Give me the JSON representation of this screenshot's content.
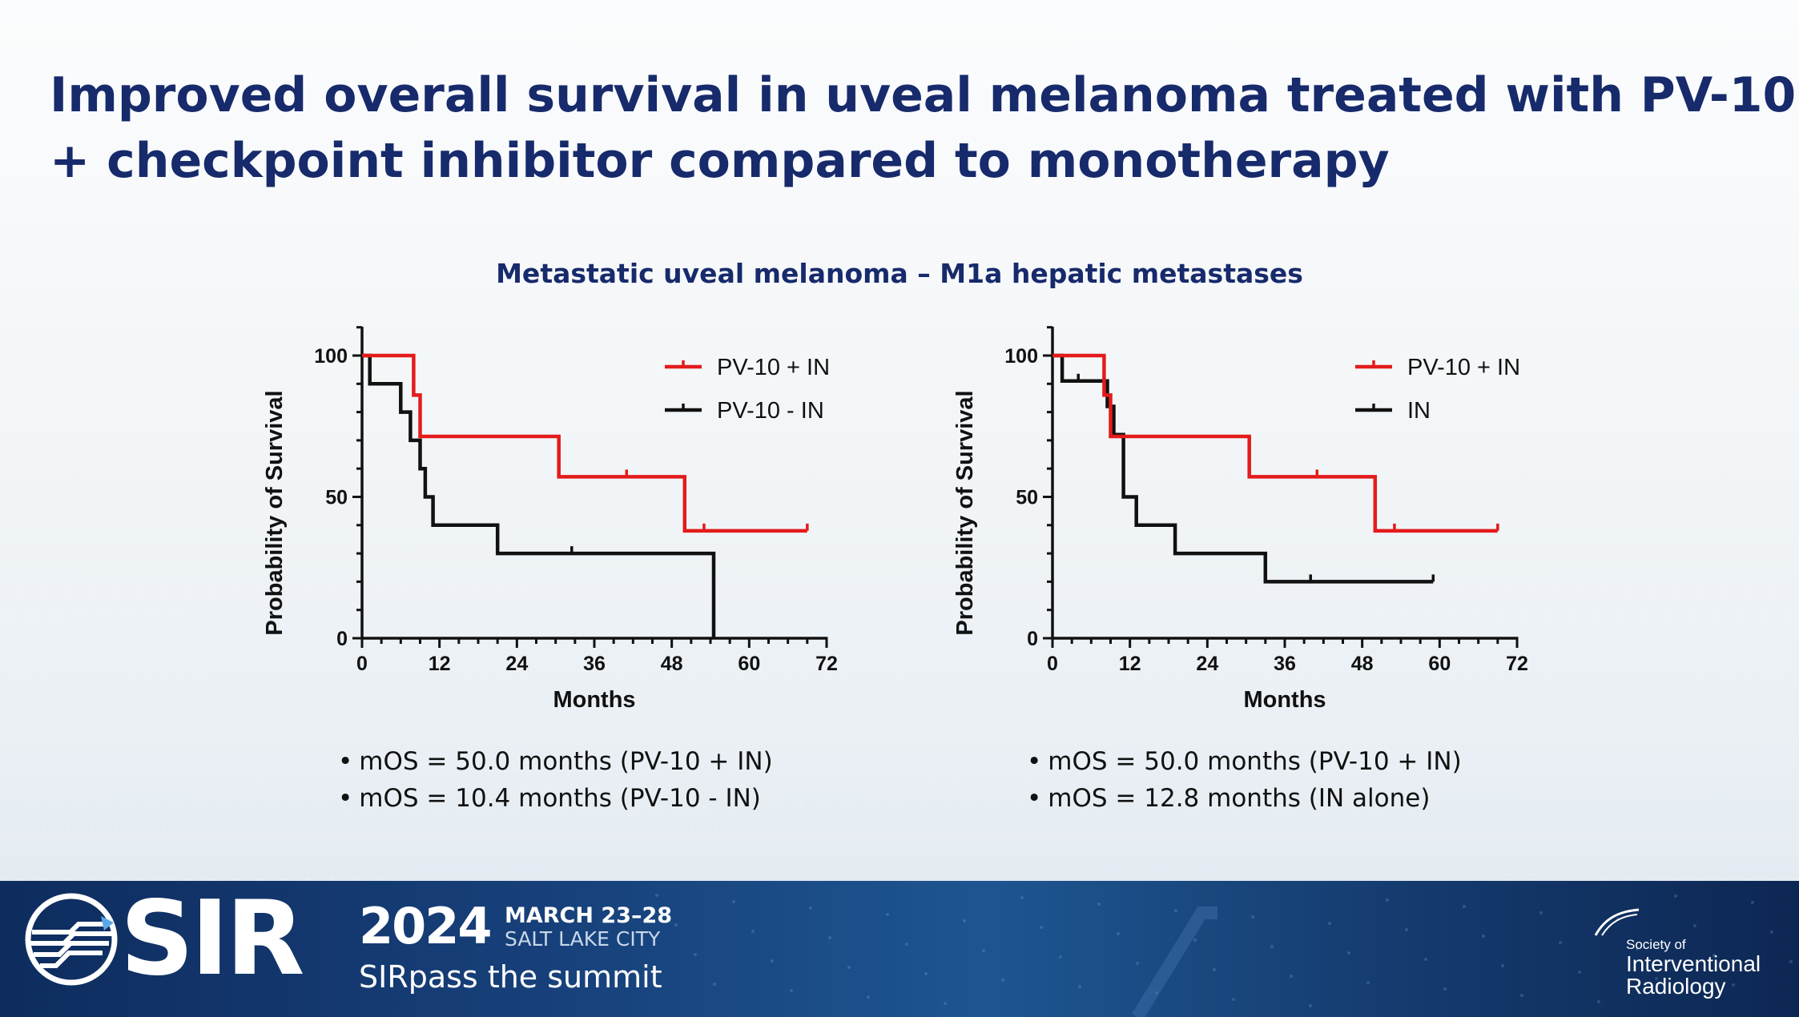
{
  "title": {
    "line1": "Improved overall survival in uveal melanoma treated with PV-10",
    "line2": "+ checkpoint inhibitor compared to monotherapy"
  },
  "subtitle": "Metastatic uveal melanoma – M1a hepatic metastases",
  "colors": {
    "title": "#172a6b",
    "red": "#e31b1b",
    "black": "#111111",
    "footer": "#17407a"
  },
  "chart_data": [
    {
      "type": "line",
      "title": "",
      "xlabel": "Months",
      "ylabel": "Probability of Survival",
      "xlim": [
        0,
        72
      ],
      "ylim": [
        0,
        100
      ],
      "xticks": [
        0,
        12,
        24,
        36,
        48,
        60,
        72
      ],
      "yticks": [
        0,
        50,
        100
      ],
      "xtick_labels": [
        "0",
        "12",
        "24",
        "36",
        "48",
        "60",
        "72"
      ],
      "ytick_labels": [
        "0",
        "50",
        "100"
      ],
      "legend_position": "top-right",
      "series": [
        {
          "name": "PV-10 + IN",
          "color": "#e31b1b",
          "points": [
            [
              0,
              100
            ],
            [
              8,
              100
            ],
            [
              8,
              86
            ],
            [
              9,
              86
            ],
            [
              9,
              71.4
            ],
            [
              30.5,
              71.4
            ],
            [
              30.5,
              57.1
            ],
            [
              50,
              57.1
            ],
            [
              50,
              38
            ],
            [
              69,
              38
            ]
          ],
          "censors": [
            [
              41,
              57.1
            ],
            [
              53,
              38
            ],
            [
              69,
              38
            ]
          ]
        },
        {
          "name": "PV-10 - IN",
          "color": "#111111",
          "points": [
            [
              0,
              100
            ],
            [
              1.2,
              100
            ],
            [
              1.2,
              90
            ],
            [
              6,
              90
            ],
            [
              6,
              80
            ],
            [
              7.5,
              80
            ],
            [
              7.5,
              70
            ],
            [
              9,
              70
            ],
            [
              9,
              60
            ],
            [
              9.8,
              60
            ],
            [
              9.8,
              50
            ],
            [
              11,
              50
            ],
            [
              11,
              40
            ],
            [
              21,
              40
            ],
            [
              21,
              30
            ],
            [
              54.5,
              30
            ],
            [
              54.5,
              0
            ]
          ],
          "censors": [
            [
              32.5,
              30
            ]
          ]
        }
      ]
    },
    {
      "type": "line",
      "title": "",
      "xlabel": "Months",
      "ylabel": "Probability of Survival",
      "xlim": [
        0,
        72
      ],
      "ylim": [
        0,
        100
      ],
      "xticks": [
        0,
        12,
        24,
        36,
        48,
        60,
        72
      ],
      "yticks": [
        0,
        50,
        100
      ],
      "xtick_labels": [
        "0",
        "12",
        "24",
        "36",
        "48",
        "60",
        "72"
      ],
      "ytick_labels": [
        "0",
        "50",
        "100"
      ],
      "legend_position": "top-right",
      "series": [
        {
          "name": "PV-10 + IN",
          "color": "#e31b1b",
          "points": [
            [
              0,
              100
            ],
            [
              8,
              100
            ],
            [
              8,
              86
            ],
            [
              9,
              86
            ],
            [
              9,
              71.4
            ],
            [
              30.5,
              71.4
            ],
            [
              30.5,
              57.1
            ],
            [
              50,
              57.1
            ],
            [
              50,
              38
            ],
            [
              69,
              38
            ]
          ],
          "censors": [
            [
              41,
              57.1
            ],
            [
              53,
              38
            ],
            [
              69,
              38
            ]
          ]
        },
        {
          "name": "IN",
          "color": "#111111",
          "points": [
            [
              0,
              100
            ],
            [
              1.5,
              100
            ],
            [
              1.5,
              91
            ],
            [
              8.5,
              91
            ],
            [
              8.5,
              82
            ],
            [
              9.5,
              82
            ],
            [
              9.5,
              72
            ],
            [
              11,
              72
            ],
            [
              11,
              50
            ],
            [
              13,
              50
            ],
            [
              13,
              40
            ],
            [
              19,
              40
            ],
            [
              19,
              30
            ],
            [
              33,
              30
            ],
            [
              33,
              20
            ],
            [
              59,
              20
            ]
          ],
          "censors": [
            [
              4,
              91
            ],
            [
              40,
              20
            ],
            [
              59,
              20
            ]
          ]
        }
      ]
    }
  ],
  "bullets_left": [
    "mOS = 50.0 months (PV-10 + IN)",
    "mOS = 10.4 months (PV-10 - IN)"
  ],
  "bullets_right": [
    "mOS = 50.0 months (PV-10 + IN)",
    "mOS = 12.8 months (IN alone)"
  ],
  "footer": {
    "logo_text": "SIR",
    "year": "2024",
    "dates": "MARCH 23–28",
    "city": "SALT LAKE CITY",
    "tagline": "SIRpass the summit",
    "society": [
      "Society of",
      "Interventional",
      "Radiology"
    ]
  }
}
